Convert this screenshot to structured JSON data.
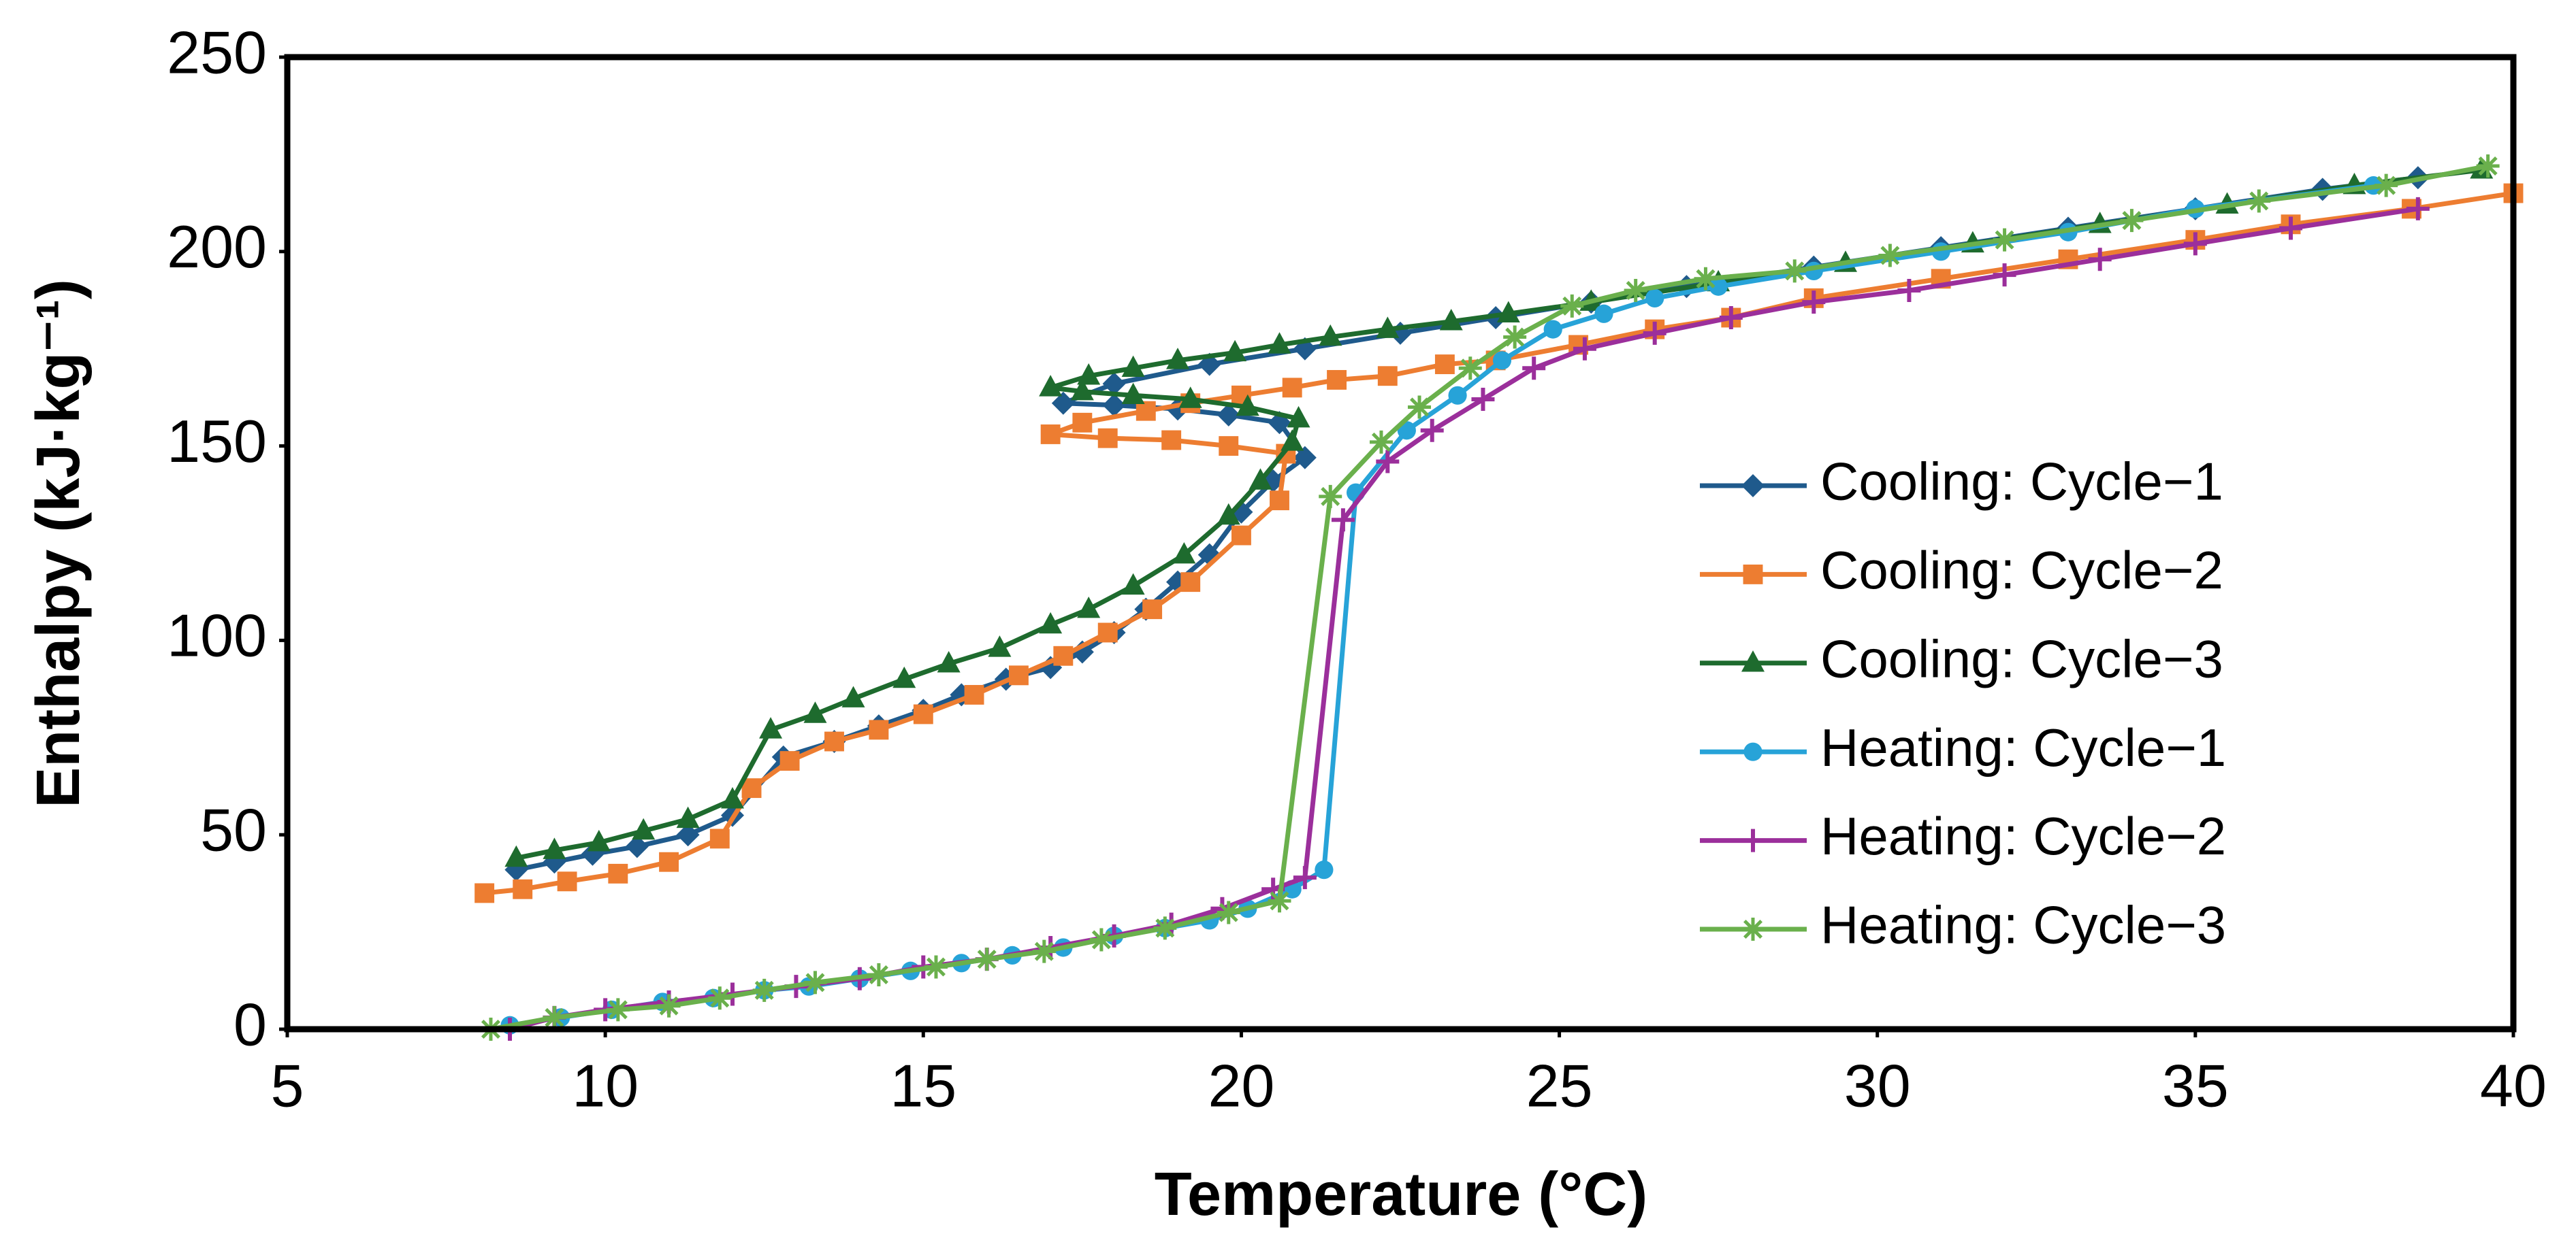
{
  "chart_data": {
    "type": "line",
    "xlabel": "Temperature (°C)",
    "ylabel": "Enthalpy (kJ·kg⁻¹)",
    "xlim": [
      5,
      40
    ],
    "xticks": [
      5,
      10,
      15,
      20,
      25,
      30,
      35,
      40
    ],
    "ylim": [
      0,
      250
    ],
    "yticks": [
      0,
      50,
      100,
      150,
      200,
      250
    ],
    "grid": false,
    "legend": "right",
    "series": [
      {
        "name": "Cooling: Cycle−1",
        "color": "#1f5a8c",
        "marker": "diamond",
        "x": [
          38.5,
          37,
          35,
          33,
          31,
          29,
          27,
          25.5,
          24,
          22.5,
          21,
          19.5,
          18,
          17.2,
          18,
          19,
          19.8,
          20.6,
          21,
          20.5,
          20,
          19.5,
          19,
          18.5,
          18,
          17.5,
          17,
          16.3,
          15.6,
          15,
          14.3,
          13.6,
          12.8,
          12,
          11.3,
          10.5,
          9.8,
          9.2,
          8.6
        ],
        "values": [
          219,
          216,
          211,
          206,
          201,
          196,
          191,
          187,
          183,
          179,
          175,
          171,
          166,
          161,
          160.5,
          159.5,
          158,
          156,
          147,
          141,
          133,
          122,
          115,
          108,
          102,
          97,
          93,
          90,
          86,
          82,
          78,
          74,
          70,
          55,
          50,
          47,
          45,
          43,
          41
        ]
      },
      {
        "name": "Cooling: Cycle−2",
        "color": "#ed7d31",
        "marker": "square",
        "x": [
          40,
          38.4,
          36.5,
          35,
          33,
          31,
          29,
          27.7,
          26.5,
          25.3,
          24,
          23.2,
          22.3,
          21.5,
          20.8,
          20,
          19.2,
          18.5,
          17.5,
          17,
          17.9,
          18.9,
          19.8,
          20.7,
          20.6,
          20,
          19.2,
          18.6,
          17.9,
          17.2,
          16.5,
          15.8,
          15,
          14.3,
          13.6,
          12.9,
          12.3,
          11.8,
          11,
          10.2,
          9.4,
          8.7,
          8.1
        ],
        "values": [
          215,
          211,
          207,
          203,
          198,
          193,
          188,
          183,
          180,
          176,
          172,
          171,
          168,
          167,
          165,
          163,
          161,
          159,
          156,
          153,
          152,
          151.5,
          150,
          148,
          136,
          127,
          115,
          108,
          102,
          96,
          91,
          86,
          81,
          77,
          74,
          69,
          62,
          49,
          43,
          40,
          38,
          36,
          35
        ]
      },
      {
        "name": "Cooling: Cycle−3",
        "color": "#1e6b2e",
        "marker": "triangle",
        "x": [
          39.5,
          37.5,
          35.5,
          33.5,
          31.5,
          29.5,
          27.5,
          25.5,
          24.2,
          23.3,
          22.3,
          21.4,
          20.6,
          19.9,
          19,
          18.3,
          17.6,
          17,
          17.5,
          18.3,
          19.2,
          20.1,
          20.9,
          20.8,
          20.3,
          19.8,
          19.1,
          18.3,
          17.6,
          17,
          16.2,
          15.4,
          14.7,
          13.9,
          13.3,
          12.6,
          12,
          11.3,
          10.6,
          9.9,
          9.2,
          8.6
        ],
        "values": [
          221,
          217,
          212,
          207,
          202,
          197,
          192,
          187,
          184,
          182,
          180,
          178,
          176,
          174,
          172,
          170,
          168,
          165,
          164,
          163,
          162,
          160,
          157,
          151,
          141,
          132,
          122,
          114,
          108,
          104,
          98,
          94,
          90,
          85,
          81,
          77,
          59,
          54,
          51,
          48,
          46,
          44
        ]
      },
      {
        "name": "Heating: Cycle−1",
        "color": "#27a3d8",
        "marker": "circle",
        "x": [
          8.5,
          9.3,
          10.1,
          10.9,
          11.7,
          12.5,
          13.2,
          14,
          14.8,
          15.6,
          16.4,
          17.2,
          18,
          18.8,
          19.5,
          20.1,
          20.8,
          21.3,
          21.8,
          22.6,
          23.4,
          24.1,
          24.9,
          25.7,
          26.5,
          27.5,
          29,
          31,
          33,
          35,
          37.8
        ],
        "values": [
          1,
          3,
          5,
          7,
          8,
          10,
          11,
          13,
          15,
          17,
          19,
          21,
          24,
          26,
          28,
          31,
          36,
          41,
          138,
          154,
          163,
          172,
          180,
          184,
          188,
          191,
          195,
          200,
          205,
          211,
          217
        ]
      },
      {
        "name": "Heating: Cycle−2",
        "color": "#9b2f9b",
        "marker": "plus",
        "x": [
          8.5,
          9.2,
          10,
          11,
          12,
          13,
          14,
          15,
          16,
          17,
          18,
          18.9,
          19.7,
          20.5,
          21,
          21.6,
          22.3,
          23,
          23.8,
          24.6,
          25.4,
          26.5,
          27.7,
          29,
          30.5,
          32,
          33.5,
          35,
          36.5,
          38.5
        ],
        "values": [
          0,
          3,
          5,
          7,
          9,
          11,
          13,
          16,
          18,
          21,
          24,
          27,
          31,
          36,
          39,
          131,
          146,
          154,
          162,
          170,
          175,
          179,
          183,
          187,
          190,
          194,
          198,
          202,
          206,
          211
        ]
      },
      {
        "name": "Heating: Cycle−3",
        "color": "#6ab04c",
        "marker": "star",
        "x": [
          8.2,
          9.2,
          10.2,
          11,
          11.8,
          12.5,
          13.3,
          14.3,
          15.2,
          16,
          16.9,
          17.8,
          18.8,
          19.8,
          20.6,
          21.4,
          22.2,
          22.8,
          23.6,
          24.3,
          25.2,
          26.2,
          27.3,
          28.7,
          30.2,
          32,
          34,
          36,
          38,
          39.6
        ],
        "values": [
          0,
          3,
          5,
          6,
          8,
          10,
          12,
          14,
          16,
          18,
          20,
          23,
          26,
          30,
          33,
          137,
          151,
          160,
          170,
          178,
          186,
          190,
          193,
          195,
          199,
          203,
          208,
          213,
          217,
          222
        ]
      }
    ]
  }
}
